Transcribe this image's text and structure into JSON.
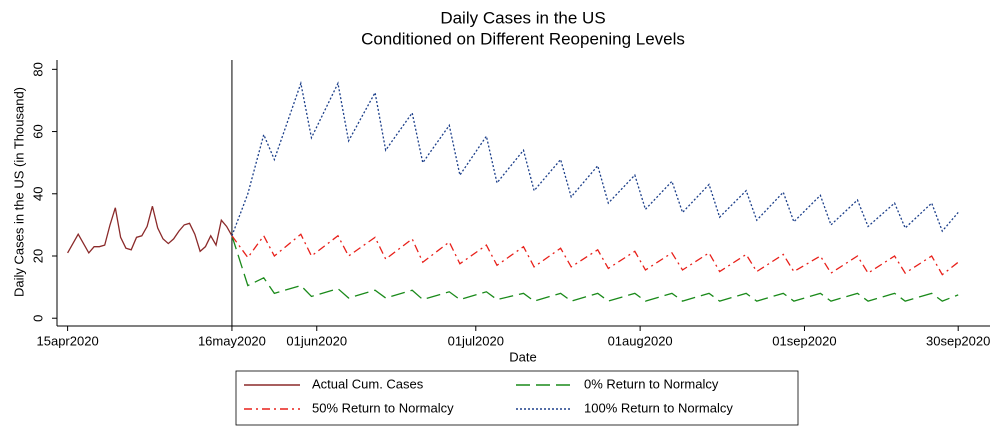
{
  "chart_data": {
    "type": "line",
    "title": "Daily Cases in the US",
    "subtitle": "Conditioned on Different Reopening Levels",
    "x_label": "Date",
    "y_label": "Daily Cases in the US (in Thousand)",
    "xlim": [
      "2020-04-13",
      "2020-10-06"
    ],
    "xticks": [
      {
        "value": "2020-04-15",
        "label": "15apr2020"
      },
      {
        "value": "2020-05-16",
        "label": "16may2020"
      },
      {
        "value": "2020-06-01",
        "label": "01jun2020"
      },
      {
        "value": "2020-07-01",
        "label": "01jul2020"
      },
      {
        "value": "2020-08-01",
        "label": "01aug2020"
      },
      {
        "value": "2020-09-01",
        "label": "01sep2020"
      },
      {
        "value": "2020-09-30",
        "label": "30sep2020"
      }
    ],
    "ylim": [
      -2.5,
      83
    ],
    "yticks": [
      0,
      20,
      40,
      60,
      80
    ],
    "xline": "2020-05-16",
    "grid": false,
    "legend": "bottom",
    "series": [
      {
        "name": "Actual Cum. Cases",
        "color": "#8b2a2a",
        "dash": "solid",
        "x": [
          "2020-04-15",
          "2020-04-16",
          "2020-04-17",
          "2020-04-18",
          "2020-04-19",
          "2020-04-20",
          "2020-04-21",
          "2020-04-22",
          "2020-04-23",
          "2020-04-24",
          "2020-04-25",
          "2020-04-26",
          "2020-04-27",
          "2020-04-28",
          "2020-04-29",
          "2020-04-30",
          "2020-05-01",
          "2020-05-02",
          "2020-05-03",
          "2020-05-04",
          "2020-05-05",
          "2020-05-06",
          "2020-05-07",
          "2020-05-08",
          "2020-05-09",
          "2020-05-10",
          "2020-05-11",
          "2020-05-12",
          "2020-05-13",
          "2020-05-14",
          "2020-05-15",
          "2020-05-16"
        ],
        "values": [
          21,
          24,
          27,
          24,
          21,
          23,
          23,
          23.5,
          30,
          35.5,
          26,
          22.5,
          22,
          26,
          26.5,
          29.5,
          36,
          29,
          25.5,
          24,
          25.5,
          28,
          30,
          30.5,
          27,
          21.5,
          23,
          26.5,
          23.5,
          31.5,
          29.5,
          26.5
        ]
      },
      {
        "name": "0% Return to Normalcy",
        "color": "#1a8a1a",
        "dash": "longdash",
        "x": [
          "2020-05-16",
          "2020-05-19",
          "2020-05-22",
          "2020-05-24",
          "2020-05-29",
          "2020-05-31",
          "2020-06-05",
          "2020-06-07",
          "2020-06-12",
          "2020-06-14",
          "2020-06-19",
          "2020-06-21",
          "2020-06-26",
          "2020-06-28",
          "2020-07-03",
          "2020-07-05",
          "2020-07-10",
          "2020-07-12",
          "2020-07-17",
          "2020-07-19",
          "2020-07-24",
          "2020-07-26",
          "2020-07-31",
          "2020-08-02",
          "2020-08-07",
          "2020-08-09",
          "2020-08-14",
          "2020-08-16",
          "2020-08-21",
          "2020-08-23",
          "2020-08-28",
          "2020-08-30",
          "2020-09-04",
          "2020-09-06",
          "2020-09-11",
          "2020-09-13",
          "2020-09-18",
          "2020-09-20",
          "2020-09-25",
          "2020-09-27",
          "2020-09-30"
        ],
        "values": [
          26.5,
          10.5,
          13,
          8,
          10.5,
          7,
          9.5,
          6.5,
          9,
          6.5,
          9,
          6,
          8.5,
          6,
          8.5,
          6,
          8,
          5.5,
          8,
          5.5,
          8,
          5.5,
          8,
          5.5,
          8,
          5.5,
          8,
          5.5,
          8,
          5.5,
          8,
          5.5,
          8,
          5.5,
          8,
          5.5,
          8,
          5.5,
          8,
          5.5,
          7.5
        ]
      },
      {
        "name": "50% Return to Normalcy",
        "color": "#e8201a",
        "dash": "dashdot",
        "x": [
          "2020-05-16",
          "2020-05-19",
          "2020-05-22",
          "2020-05-24",
          "2020-05-29",
          "2020-05-31",
          "2020-06-05",
          "2020-06-07",
          "2020-06-12",
          "2020-06-14",
          "2020-06-19",
          "2020-06-21",
          "2020-06-26",
          "2020-06-28",
          "2020-07-03",
          "2020-07-05",
          "2020-07-10",
          "2020-07-12",
          "2020-07-17",
          "2020-07-19",
          "2020-07-24",
          "2020-07-26",
          "2020-07-31",
          "2020-08-02",
          "2020-08-07",
          "2020-08-09",
          "2020-08-14",
          "2020-08-16",
          "2020-08-21",
          "2020-08-23",
          "2020-08-28",
          "2020-08-30",
          "2020-09-04",
          "2020-09-06",
          "2020-09-11",
          "2020-09-13",
          "2020-09-18",
          "2020-09-20",
          "2020-09-25",
          "2020-09-27",
          "2020-09-30"
        ],
        "values": [
          26.5,
          19.5,
          26.5,
          20,
          27,
          20,
          26.5,
          20,
          26,
          19,
          25.5,
          18,
          24.5,
          17.5,
          23.5,
          17,
          23,
          16.5,
          22.5,
          16.5,
          22,
          16,
          21.5,
          15.5,
          21,
          15.5,
          21,
          15,
          20.5,
          15,
          20.5,
          15,
          20,
          14.5,
          20,
          14.5,
          20,
          14.5,
          20,
          14,
          18
        ]
      },
      {
        "name": "100% Return to Normalcy",
        "color": "#1c3f8a",
        "dash": "dot",
        "x": [
          "2020-05-16",
          "2020-05-19",
          "2020-05-22",
          "2020-05-24",
          "2020-05-29",
          "2020-05-31",
          "2020-06-05",
          "2020-06-07",
          "2020-06-12",
          "2020-06-14",
          "2020-06-19",
          "2020-06-21",
          "2020-06-26",
          "2020-06-28",
          "2020-07-03",
          "2020-07-05",
          "2020-07-10",
          "2020-07-12",
          "2020-07-17",
          "2020-07-19",
          "2020-07-24",
          "2020-07-26",
          "2020-07-31",
          "2020-08-02",
          "2020-08-07",
          "2020-08-09",
          "2020-08-14",
          "2020-08-16",
          "2020-08-21",
          "2020-08-23",
          "2020-08-28",
          "2020-08-30",
          "2020-09-04",
          "2020-09-06",
          "2020-09-11",
          "2020-09-13",
          "2020-09-18",
          "2020-09-20",
          "2020-09-25",
          "2020-09-27",
          "2020-09-30"
        ],
        "values": [
          26.5,
          40,
          59,
          51,
          75.5,
          58,
          75.5,
          57,
          72.5,
          54,
          66,
          50,
          62,
          46,
          58.5,
          43.5,
          54,
          41,
          51,
          39,
          49,
          37,
          46,
          35,
          44,
          34,
          43,
          32.5,
          41,
          31.5,
          40.5,
          31,
          39.5,
          30,
          38,
          29.5,
          37,
          29,
          37,
          28,
          34
        ]
      }
    ]
  }
}
